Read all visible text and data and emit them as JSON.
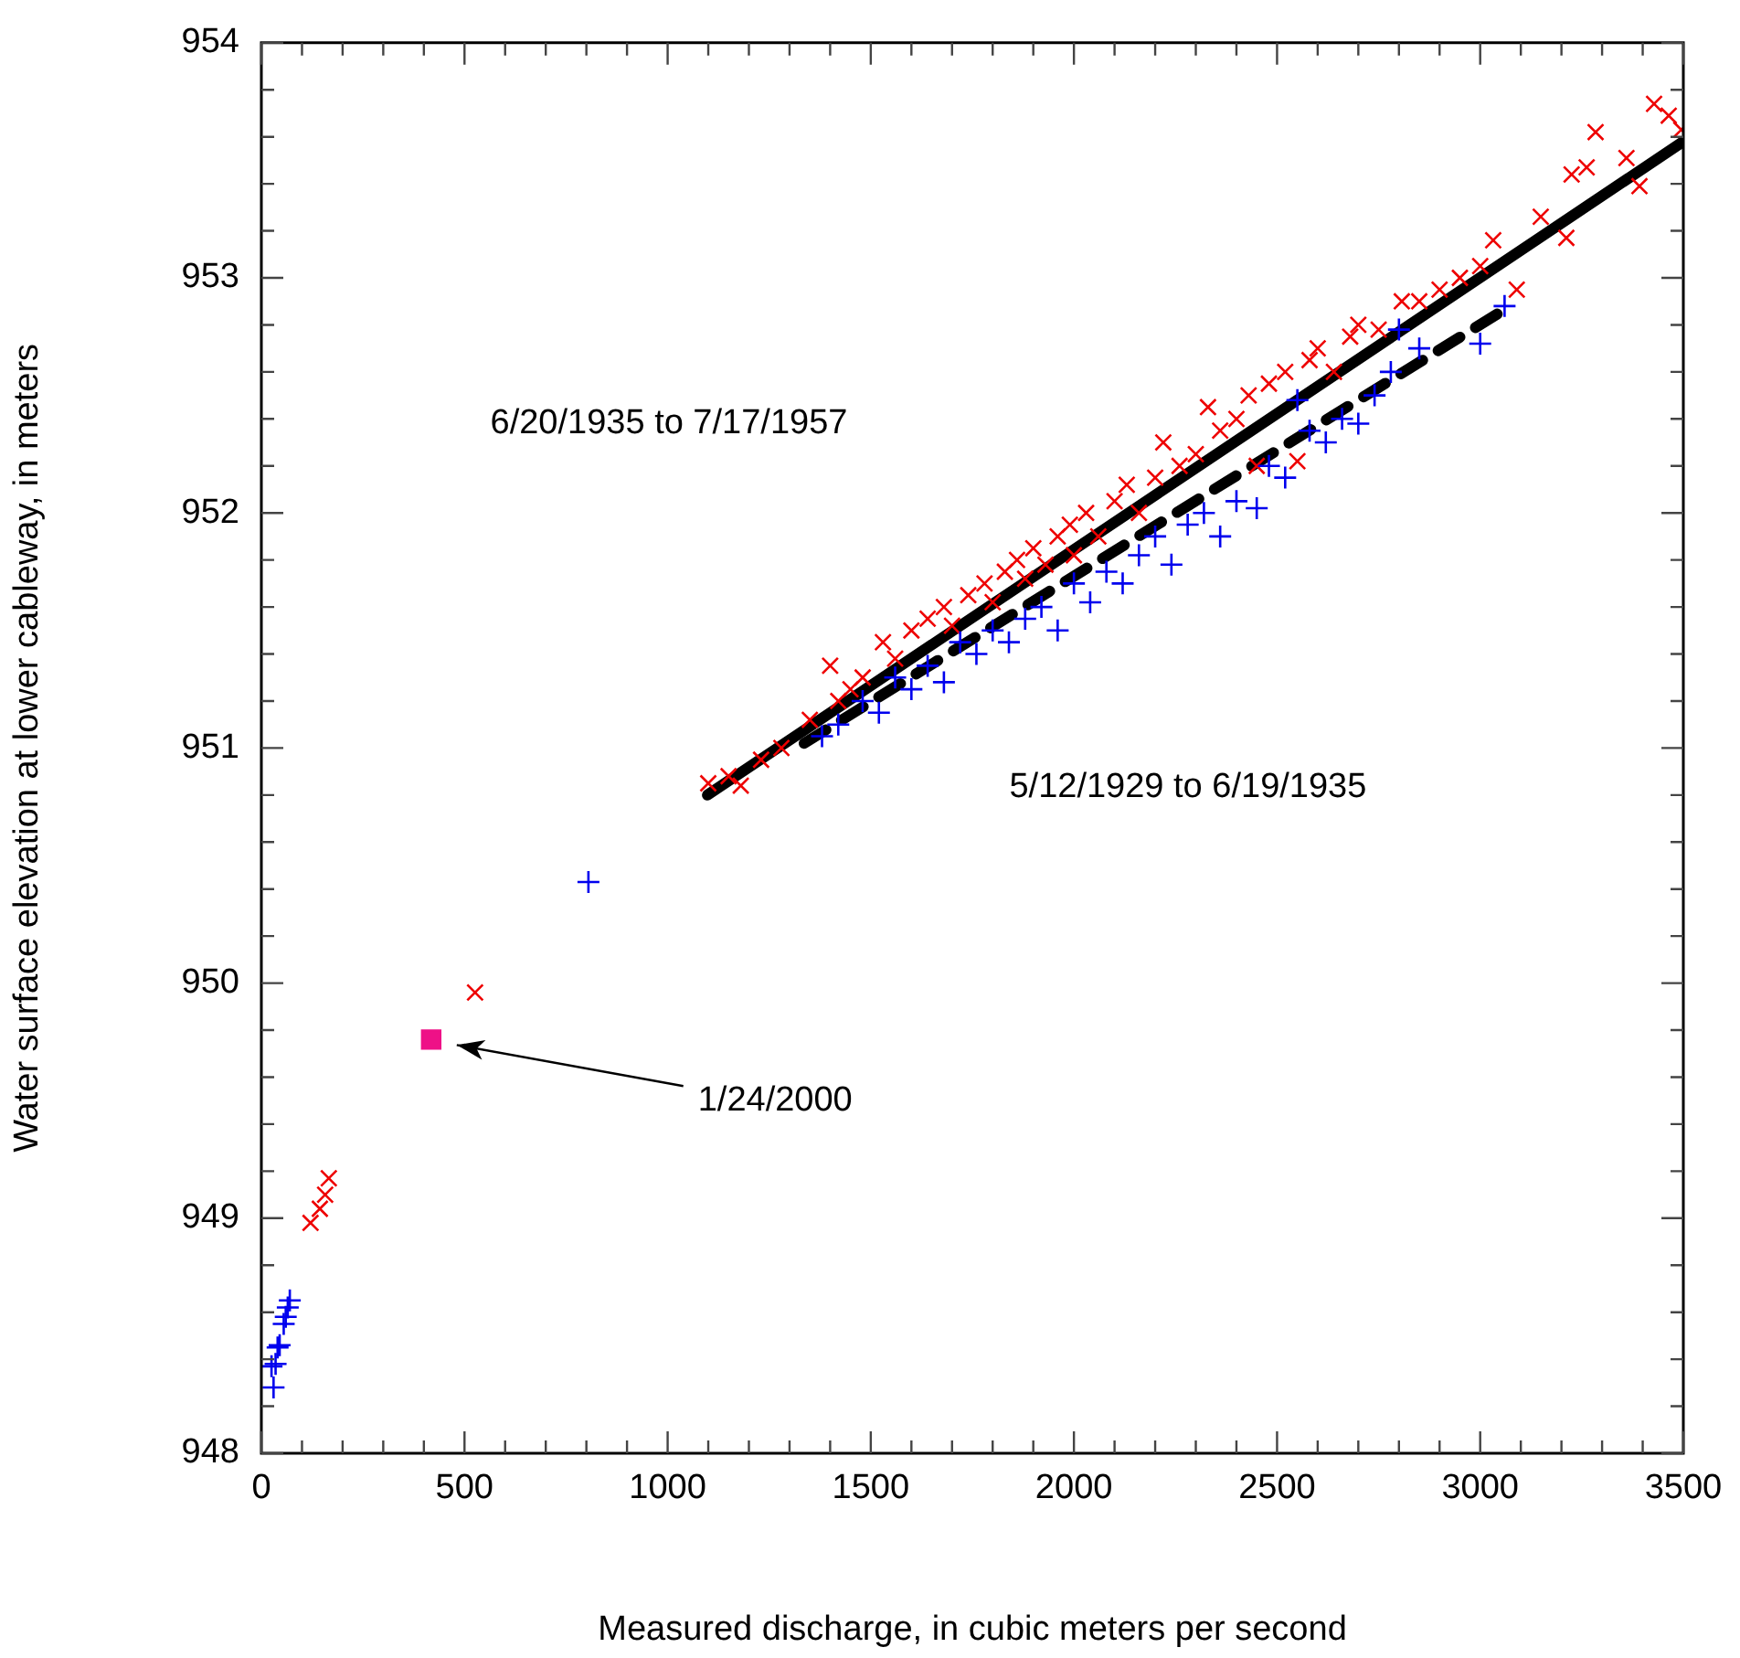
{
  "chart_data": {
    "type": "scatter",
    "xlabel": "Measured discharge, in cubic meters per second",
    "ylabel": "Water surface elevation at lower cableway, in meters",
    "xlim": [
      0,
      3500
    ],
    "ylim": [
      948,
      954
    ],
    "xticks": [
      0,
      {
        "value": 100,
        "label": null
      },
      {
        "value": 200,
        "label": null
      },
      {
        "value": 300,
        "label": null
      },
      {
        "value": 400,
        "label": null
      },
      500,
      {
        "value": 600,
        "label": null
      },
      {
        "value": 700,
        "label": null
      },
      {
        "value": 800,
        "label": null
      },
      {
        "value": 900,
        "label": null
      },
      1000,
      {
        "value": 1100,
        "label": null
      },
      {
        "value": 1200,
        "label": null
      },
      {
        "value": 1300,
        "label": null
      },
      {
        "value": 1400,
        "label": null
      },
      1500,
      {
        "value": 1600,
        "label": null
      },
      {
        "value": 1700,
        "label": null
      },
      {
        "value": 1800,
        "label": null
      },
      {
        "value": 1900,
        "label": null
      },
      2000,
      {
        "value": 2100,
        "label": null
      },
      {
        "value": 2200,
        "label": null
      },
      {
        "value": 2300,
        "label": null
      },
      {
        "value": 2400,
        "label": null
      },
      2500,
      {
        "value": 2600,
        "label": null
      },
      {
        "value": 2700,
        "label": null
      },
      {
        "value": 2800,
        "label": null
      },
      {
        "value": 2900,
        "label": null
      },
      3000,
      {
        "value": 3100,
        "label": null
      },
      {
        "value": 3200,
        "label": null
      },
      {
        "value": 3300,
        "label": null
      },
      {
        "value": 3400,
        "label": null
      },
      3500
    ],
    "yticks": [
      948,
      {
        "value": 948.2,
        "label": null
      },
      {
        "value": 948.4,
        "label": null
      },
      {
        "value": 948.6,
        "label": null
      },
      {
        "value": 948.8,
        "label": null
      },
      949,
      {
        "value": 949.2,
        "label": null
      },
      {
        "value": 949.4,
        "label": null
      },
      {
        "value": 949.6,
        "label": null
      },
      {
        "value": 949.8,
        "label": null
      },
      950,
      {
        "value": 950.2,
        "label": null
      },
      {
        "value": 950.4,
        "label": null
      },
      {
        "value": 950.6,
        "label": null
      },
      {
        "value": 950.8,
        "label": null
      },
      951,
      {
        "value": 951.2,
        "label": null
      },
      {
        "value": 951.4,
        "label": null
      },
      {
        "value": 951.6,
        "label": null
      },
      {
        "value": 951.8,
        "label": null
      },
      952,
      {
        "value": 952.2,
        "label": null
      },
      {
        "value": 952.4,
        "label": null
      },
      {
        "value": 952.6,
        "label": null
      },
      {
        "value": 952.8,
        "label": null
      },
      953,
      {
        "value": 953.2,
        "label": null
      },
      {
        "value": 953.4,
        "label": null
      },
      {
        "value": 953.6,
        "label": null
      },
      {
        "value": 953.8,
        "label": null
      },
      954
    ],
    "grid": false,
    "legend": false,
    "series": [
      {
        "marker": "cross",
        "color": "#0000ee",
        "x": [
          30,
          25,
          35,
          40,
          45,
          55,
          60,
          65,
          70,
          805,
          1380,
          1420,
          1480,
          1520,
          1560,
          1600,
          1640,
          1680,
          1720,
          1760,
          1800,
          1840,
          1880,
          1920,
          1960,
          2000,
          2040,
          2080,
          2120,
          2160,
          2200,
          2240,
          2280,
          2320,
          2360,
          2400,
          2450,
          2480,
          2520,
          2550,
          2580,
          2620,
          2660,
          2700,
          2740,
          2780,
          2800,
          2850,
          3000,
          3060
        ],
        "values": [
          948.28,
          948.37,
          948.38,
          948.45,
          948.46,
          948.55,
          948.58,
          948.62,
          948.65,
          950.43,
          951.05,
          951.1,
          951.2,
          951.15,
          951.3,
          951.25,
          951.35,
          951.28,
          951.45,
          951.4,
          951.5,
          951.45,
          951.55,
          951.6,
          951.5,
          951.7,
          951.62,
          951.75,
          951.7,
          951.82,
          951.9,
          951.78,
          951.95,
          952.0,
          951.9,
          952.05,
          952.02,
          952.2,
          952.15,
          952.48,
          952.35,
          952.3,
          952.4,
          952.38,
          952.5,
          952.6,
          952.78,
          952.7,
          952.72,
          952.88
        ]
      },
      {
        "marker": "x",
        "color": "#ee0000",
        "x": [
          121,
          144,
          157,
          166,
          526,
          1100,
          1150,
          1180,
          1230,
          1280,
          1350,
          1400,
          1420,
          1450,
          1480,
          1530,
          1560,
          1600,
          1640,
          1680,
          1700,
          1740,
          1780,
          1800,
          1830,
          1860,
          1880,
          1900,
          1930,
          1960,
          1990,
          2000,
          2030,
          2060,
          2100,
          2130,
          2160,
          2200,
          2220,
          2260,
          2300,
          2330,
          2360,
          2400,
          2430,
          2450,
          2480,
          2520,
          2550,
          2580,
          2600,
          2640,
          2680,
          2700,
          2750,
          2807,
          2850,
          2900,
          2950,
          3000,
          3032,
          3090,
          3149,
          3212,
          3225,
          3262,
          3284,
          3360,
          3392,
          3428,
          3464,
          3495
        ],
        "values": [
          948.98,
          949.04,
          949.1,
          949.17,
          949.96,
          950.85,
          950.88,
          950.84,
          950.95,
          951.0,
          951.12,
          951.35,
          951.2,
          951.25,
          951.3,
          951.45,
          951.38,
          951.5,
          951.55,
          951.6,
          951.52,
          951.65,
          951.7,
          951.62,
          951.75,
          951.8,
          951.72,
          951.85,
          951.78,
          951.9,
          951.95,
          951.82,
          952.0,
          951.9,
          952.05,
          952.12,
          952.0,
          952.15,
          952.3,
          952.2,
          952.25,
          952.45,
          952.35,
          952.4,
          952.5,
          952.2,
          952.55,
          952.6,
          952.22,
          952.65,
          952.7,
          952.6,
          952.75,
          952.8,
          952.78,
          952.9,
          952.9,
          952.95,
          953.0,
          953.05,
          953.16,
          952.95,
          953.26,
          953.17,
          953.44,
          953.47,
          953.62,
          953.51,
          953.39,
          953.74,
          953.69,
          953.63
        ]
      },
      {
        "marker": "square",
        "color": "#ee1187",
        "x": [
          418
        ],
        "values": [
          949.76
        ]
      },
      {
        "type": "line",
        "marker": "none",
        "line_style": "solid",
        "color": "#000000",
        "x": [
          1098,
          3500
        ],
        "values": [
          950.8,
          953.58
        ]
      },
      {
        "type": "line",
        "marker": "none",
        "line_style": "dashed",
        "color": "#000000",
        "x": [
          1336,
          3055
        ],
        "values": [
          951.02,
          952.86
        ]
      }
    ],
    "annotations": [
      "6/20/1935 to 7/17/1957",
      "5/12/1929 to 6/19/1935",
      "1/24/2000"
    ]
  }
}
